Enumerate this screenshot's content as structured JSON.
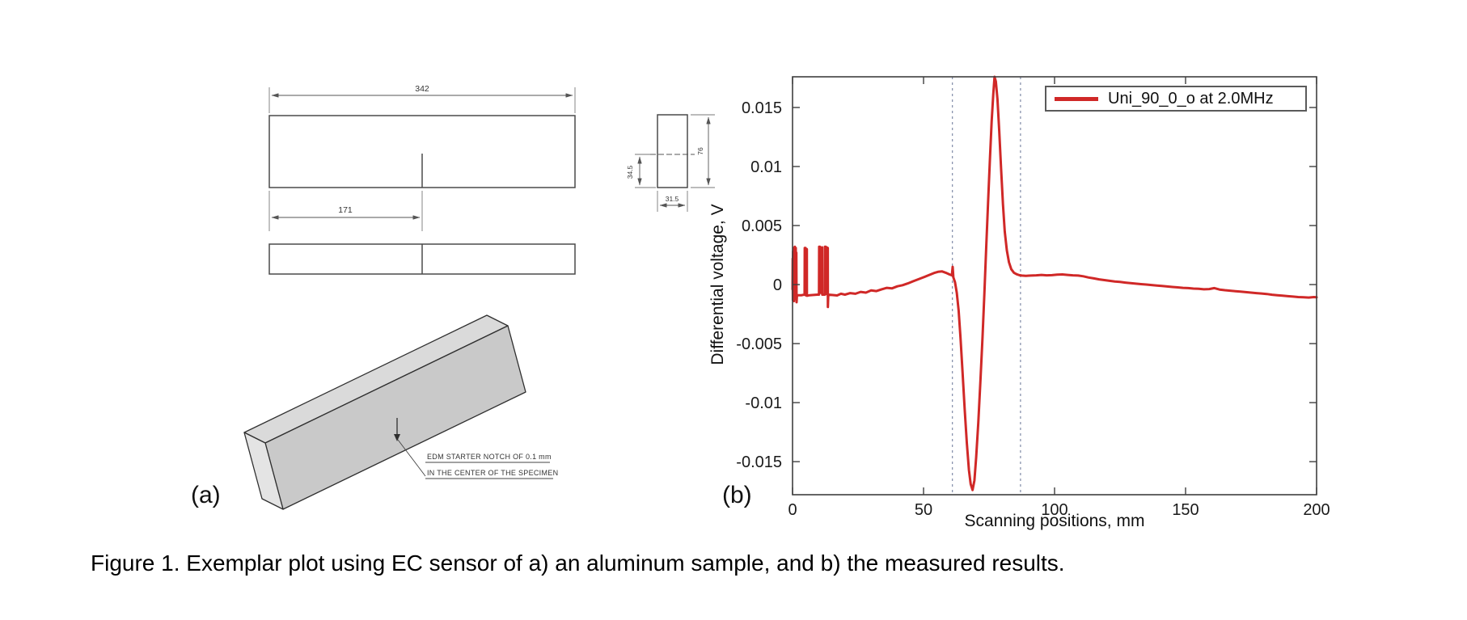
{
  "caption": "Figure 1. Exemplar plot using EC sensor of a) an aluminum sample, and b) the measured results.",
  "panels": {
    "a_label": "(a)",
    "b_label": "(b)"
  },
  "drawing": {
    "dim_total_length": "342",
    "dim_notch_position": "171",
    "dim_half_height": "34.5",
    "dim_height": "76",
    "dim_width": "31.5",
    "notch_note_line1": "EDM STARTER NOTCH OF 0.1 mm",
    "notch_note_line2": "IN THE CENTER OF THE SPECIMEN"
  },
  "chart_data": {
    "type": "line",
    "title": "",
    "xlabel": "Scanning positions, mm",
    "ylabel": "Differential voltage, V",
    "xlim": [
      0,
      200
    ],
    "ylim": [
      -0.0178,
      0.0176
    ],
    "x_ticks": [
      0,
      50,
      100,
      150,
      200
    ],
    "y_ticks": [
      -0.015,
      -0.01,
      -0.005,
      0,
      0.005,
      0.01,
      0.015
    ],
    "y_tick_labels": [
      "-0.015",
      "-0.01",
      "-0.005",
      "0",
      "0.005",
      "0.01",
      "0.015"
    ],
    "grid": false,
    "legend": {
      "position": "top-right",
      "entries": [
        {
          "label": "Uni_90_0_o at 2.0MHz",
          "color": "#d02827"
        }
      ]
    },
    "reference_lines": {
      "type": "vertical-dashed",
      "x": [
        61,
        87
      ],
      "color": "#8a94ae"
    },
    "series": [
      {
        "name": "Uni_90_0_o at 2.0MHz",
        "color": "#d02827",
        "points": [
          [
            0,
            -0.0004
          ],
          [
            0.06,
            0.0022
          ],
          [
            0.12,
            -0.0013
          ],
          [
            0.18,
            0.0028
          ],
          [
            0.24,
            -0.0011
          ],
          [
            0.3,
            0.0031
          ],
          [
            0.36,
            -0.0012
          ],
          [
            0.45,
            0.0029
          ],
          [
            0.55,
            -0.0014
          ],
          [
            0.65,
            0.0031
          ],
          [
            0.75,
            -0.001
          ],
          [
            0.85,
            0.0032
          ],
          [
            0.95,
            -0.0012
          ],
          [
            1.05,
            0.003
          ],
          [
            1.15,
            -0.0009
          ],
          [
            1.25,
            0.0031
          ],
          [
            1.35,
            -0.0008
          ],
          [
            1.45,
            0.0027
          ],
          [
            1.55,
            -0.0015
          ],
          [
            1.7,
            -0.0009
          ],
          [
            2.5,
            -0.0009
          ],
          [
            3.5,
            -0.0009
          ],
          [
            4.4,
            -0.00085
          ],
          [
            4.6,
            -0.00085
          ],
          [
            4.65,
            0.0031
          ],
          [
            4.95,
            0.0031
          ],
          [
            5.0,
            -0.0009
          ],
          [
            5.15,
            -0.0009
          ],
          [
            5.2,
            0.00295
          ],
          [
            5.45,
            0.003
          ],
          [
            5.5,
            -0.00095
          ],
          [
            6.5,
            -0.0009
          ],
          [
            8,
            -0.00088
          ],
          [
            9.5,
            -0.00085
          ],
          [
            10.1,
            -0.00085
          ],
          [
            10.15,
            0.0032
          ],
          [
            10.45,
            0.0032
          ],
          [
            10.5,
            -0.0007
          ],
          [
            10.85,
            -0.0007
          ],
          [
            10.9,
            0.0031
          ],
          [
            11.3,
            0.00315
          ],
          [
            11.35,
            -0.00085
          ],
          [
            12.3,
            -0.00085
          ],
          [
            12.35,
            0.0032
          ],
          [
            12.65,
            0.0032
          ],
          [
            12.7,
            -0.0008
          ],
          [
            13.0,
            -0.0008
          ],
          [
            13.05,
            0.00315
          ],
          [
            13.45,
            0.0031
          ],
          [
            13.5,
            -0.0019
          ],
          [
            13.65,
            -0.00085
          ],
          [
            15,
            -0.00088
          ],
          [
            17,
            -0.00092
          ],
          [
            18.5,
            -0.00078
          ],
          [
            20,
            -0.00085
          ],
          [
            22,
            -0.00072
          ],
          [
            24,
            -0.00078
          ],
          [
            26,
            -0.00062
          ],
          [
            28,
            -0.00068
          ],
          [
            30,
            -0.0005
          ],
          [
            32,
            -0.00055
          ],
          [
            34,
            -0.0004
          ],
          [
            36,
            -0.00028
          ],
          [
            38,
            -0.00032
          ],
          [
            40,
            -0.00015
          ],
          [
            42,
            -5e-05
          ],
          [
            44,
            0.0001
          ],
          [
            46,
            0.00028
          ],
          [
            48,
            0.00045
          ],
          [
            50,
            0.00062
          ],
          [
            52,
            0.0008
          ],
          [
            54,
            0.00098
          ],
          [
            55.5,
            0.00108
          ],
          [
            57,
            0.00112
          ],
          [
            58.5,
            0.001
          ],
          [
            60,
            0.00085
          ],
          [
            60.8,
            0.00078
          ],
          [
            61.1,
            0.0015
          ],
          [
            61.4,
            0.0006
          ],
          [
            62,
            0.0002
          ],
          [
            62.7,
            -0.0007
          ],
          [
            63.4,
            -0.0022
          ],
          [
            64.1,
            -0.0045
          ],
          [
            64.9,
            -0.0075
          ],
          [
            65.7,
            -0.0106
          ],
          [
            66.5,
            -0.0134
          ],
          [
            67.3,
            -0.0157
          ],
          [
            68.0,
            -0.0169
          ],
          [
            68.7,
            -0.0174
          ],
          [
            69.4,
            -0.0166
          ],
          [
            70.1,
            -0.0146
          ],
          [
            70.9,
            -0.0117
          ],
          [
            71.7,
            -0.0082
          ],
          [
            72.5,
            -0.0045
          ],
          [
            73.2,
            -0.0008
          ],
          [
            73.9,
            0.003
          ],
          [
            74.6,
            0.0068
          ],
          [
            75.3,
            0.0105
          ],
          [
            76.0,
            0.0138
          ],
          [
            76.6,
            0.0161
          ],
          [
            77.1,
            0.0176
          ],
          [
            77.6,
            0.0172
          ],
          [
            78.2,
            0.0157
          ],
          [
            78.9,
            0.013
          ],
          [
            79.6,
            0.0098
          ],
          [
            80.3,
            0.0068
          ],
          [
            81.0,
            0.0045
          ],
          [
            81.8,
            0.0029
          ],
          [
            82.6,
            0.0019
          ],
          [
            83.5,
            0.0013
          ],
          [
            84.5,
            0.001
          ],
          [
            85.5,
            0.00088
          ],
          [
            86.5,
            0.0008
          ],
          [
            87.5,
            0.00076
          ],
          [
            89,
            0.00074
          ],
          [
            91,
            0.00076
          ],
          [
            93,
            0.00078
          ],
          [
            95,
            0.00082
          ],
          [
            97,
            0.00078
          ],
          [
            99,
            0.0008
          ],
          [
            101,
            0.00084
          ],
          [
            103,
            0.00086
          ],
          [
            105,
            0.00082
          ],
          [
            107,
            0.00078
          ],
          [
            109,
            0.00076
          ],
          [
            111,
            0.0007
          ],
          [
            113,
            0.0006
          ],
          [
            115,
            0.00052
          ],
          [
            117,
            0.00044
          ],
          [
            119,
            0.00038
          ],
          [
            121,
            0.00032
          ],
          [
            123,
            0.00026
          ],
          [
            125,
            0.00022
          ],
          [
            127,
            0.00017
          ],
          [
            129,
            0.00012
          ],
          [
            131,
            8e-05
          ],
          [
            133,
            4e-05
          ],
          [
            135,
            0.0
          ],
          [
            137,
            -4e-05
          ],
          [
            139,
            -8e-05
          ],
          [
            141,
            -0.00012
          ],
          [
            143,
            -0.00016
          ],
          [
            145,
            -0.0002
          ],
          [
            147,
            -0.00024
          ],
          [
            149,
            -0.00028
          ],
          [
            151,
            -0.0003
          ],
          [
            153,
            -0.00034
          ],
          [
            155,
            -0.00036
          ],
          [
            157,
            -0.0004
          ],
          [
            159,
            -0.00038
          ],
          [
            161,
            -0.0003
          ],
          [
            163,
            -0.00042
          ],
          [
            165,
            -0.00048
          ],
          [
            167,
            -0.00052
          ],
          [
            169,
            -0.00056
          ],
          [
            171,
            -0.0006
          ],
          [
            173,
            -0.00064
          ],
          [
            175,
            -0.00068
          ],
          [
            177,
            -0.00072
          ],
          [
            179,
            -0.00076
          ],
          [
            181,
            -0.0008
          ],
          [
            183,
            -0.00086
          ],
          [
            185,
            -0.0009
          ],
          [
            187,
            -0.00094
          ],
          [
            189,
            -0.00098
          ],
          [
            191,
            -0.00102
          ],
          [
            193,
            -0.00106
          ],
          [
            195,
            -0.00108
          ],
          [
            197,
            -0.0011
          ],
          [
            199,
            -0.00106
          ],
          [
            200,
            -0.00108
          ]
        ]
      }
    ]
  }
}
